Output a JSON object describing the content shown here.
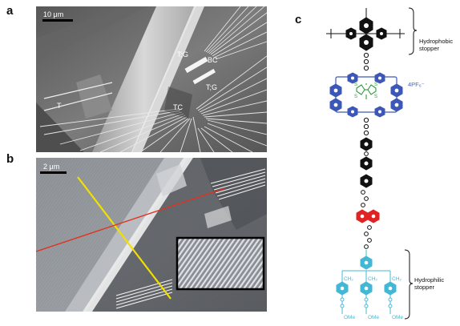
{
  "panels": {
    "a": {
      "letter": "a",
      "scale_bar": "10 μm",
      "labels": {
        "t_g_upper": "T;G",
        "bc": "BC",
        "t_g_lower": "T;G",
        "t": "T",
        "tc": "TC"
      }
    },
    "b": {
      "letter": "b",
      "scale_bar": "2 μm",
      "line_colors": {
        "yellow": "#f2e000",
        "red": "#e0321e"
      }
    },
    "c": {
      "letter": "c",
      "hydrophobic_label": [
        "Hydrophobic",
        "stopper"
      ],
      "hydrophilic_label": [
        "Hydrophilic",
        "stopper"
      ],
      "counterion": "4PF₆⁻",
      "ttf_s": "S",
      "ch2": "CH₂",
      "ome": "OMe",
      "colors": {
        "black": "#111111",
        "blue": "#3d57b8",
        "green": "#2e9b3a",
        "red": "#e02424",
        "cyan": "#43b8d4",
        "text_blue": "#4a63c8"
      }
    }
  }
}
